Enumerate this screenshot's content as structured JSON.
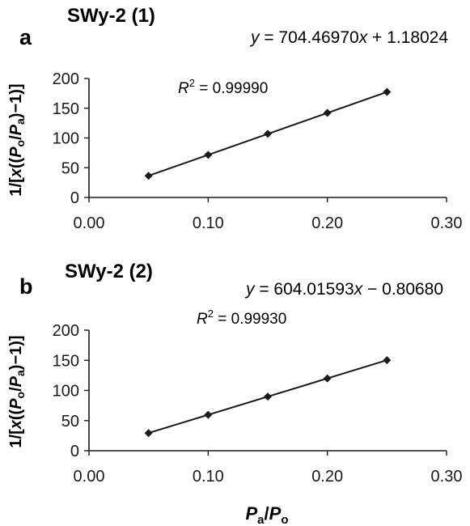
{
  "chart_data": [
    {
      "type": "scatter",
      "panel": "a",
      "title": "SWy-2 (1)",
      "equation": {
        "y": "y",
        "rest": " = 704.46970",
        "x": "x",
        "tail": " + 1.18024"
      },
      "r2": {
        "r": "R",
        "sup": "2",
        "value": " = 0.99990"
      },
      "x": [
        0.05,
        0.1,
        0.15,
        0.2,
        0.25
      ],
      "y": [
        36.4,
        71.6,
        106.9,
        142.1,
        177.3
      ],
      "fit": {
        "slope": 704.4697,
        "intercept": 1.18024,
        "x_range": [
          0.05,
          0.25
        ]
      },
      "xlim": [
        0,
        0.3
      ],
      "ylim": [
        0,
        200
      ],
      "xticks": [
        "0.00",
        "0.10",
        "0.20",
        "0.30"
      ],
      "yticks": [
        "0",
        "50",
        "100",
        "150",
        "200"
      ],
      "ylabel": {
        "pre": "1/[",
        "x": "x",
        "mid": "((",
        "p1": "P",
        "s1": "o",
        "slash": "/",
        "p2": "P",
        "s2": "a",
        "post": ")−1)]"
      },
      "xlabel": {
        "p1": "P",
        "s1": "a",
        "slash": "/",
        "p2": "P",
        "s2": "o"
      },
      "grid": false,
      "colors": {
        "line": "#1a1a1a",
        "marker": "#1a1a1a",
        "axis": "#1a1a1a"
      }
    },
    {
      "type": "scatter",
      "panel": "b",
      "title": "SWy-2 (2)",
      "equation": {
        "y": "y",
        "rest": " = 604.01593",
        "x": "x",
        "tail": " − 0.80680"
      },
      "r2": {
        "r": "R",
        "sup": "2",
        "value": " = 0.99930"
      },
      "x": [
        0.05,
        0.1,
        0.15,
        0.2,
        0.25
      ],
      "y": [
        29.4,
        59.6,
        89.8,
        120.0,
        150.2
      ],
      "fit": {
        "slope": 604.01593,
        "intercept": -0.8068,
        "x_range": [
          0.05,
          0.25
        ]
      },
      "xlim": [
        0,
        0.3
      ],
      "ylim": [
        0,
        200
      ],
      "xticks": [
        "0.00",
        "0.10",
        "0.20",
        "0.30"
      ],
      "yticks": [
        "0",
        "50",
        "100",
        "150",
        "200"
      ],
      "ylabel": {
        "pre": "1/[",
        "x": "x",
        "mid": "((",
        "p1": "P",
        "s1": "o",
        "slash": "/",
        "p2": "P",
        "s2": "a",
        "post": ")−1)]"
      },
      "xlabel": {
        "p1": "P",
        "s1": "a",
        "slash": "/",
        "p2": "P",
        "s2": "o"
      },
      "grid": false,
      "colors": {
        "line": "#1a1a1a",
        "marker": "#1a1a1a",
        "axis": "#1a1a1a"
      }
    }
  ]
}
